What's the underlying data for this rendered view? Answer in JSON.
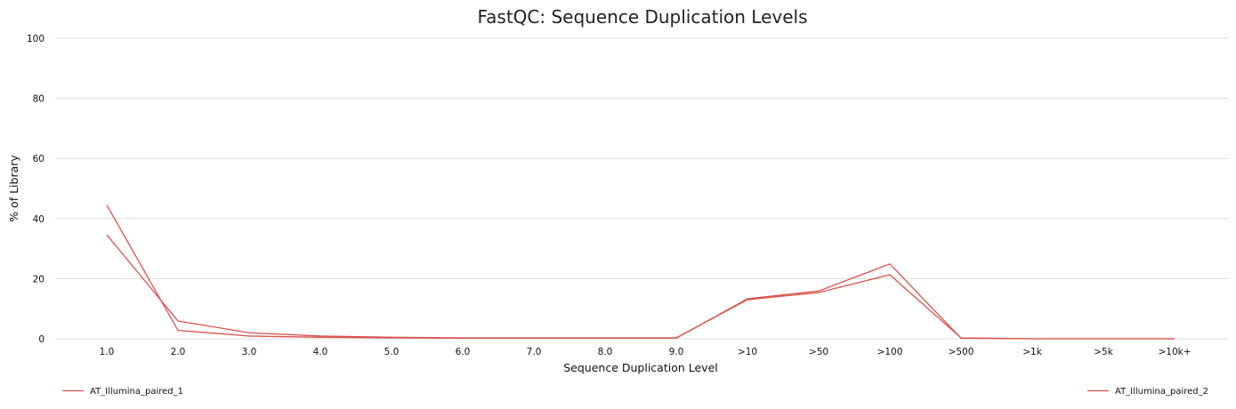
{
  "chart_data": {
    "type": "line",
    "title": "FastQC: Sequence Duplication Levels",
    "xlabel": "Sequence Duplication Level",
    "ylabel": "% of Library",
    "categories": [
      "1.0",
      "2.0",
      "3.0",
      "4.0",
      "5.0",
      "6.0",
      "7.0",
      "8.0",
      "9.0",
      ">10",
      ">50",
      ">100",
      ">500",
      ">1k",
      ">5k",
      ">10k+"
    ],
    "ylim": [
      0,
      100
    ],
    "yticks": [
      0,
      20,
      40,
      60,
      80,
      100
    ],
    "grid": true,
    "legend_position": "bottom",
    "colors": {
      "series": "#d9534f",
      "grid": "#dcdcdc"
    },
    "series": [
      {
        "name": "AT_Illumina_paired_1",
        "values": [
          44.5,
          2.8,
          0.9,
          0.5,
          0.3,
          0.2,
          0.2,
          0.2,
          0.2,
          13.3,
          15.9,
          24.9,
          0.2,
          0.0,
          0.0,
          0.0
        ]
      },
      {
        "name": "AT_Illumina_paired_2",
        "values": [
          34.6,
          5.9,
          2.0,
          0.9,
          0.5,
          0.3,
          0.3,
          0.3,
          0.3,
          13.0,
          15.4,
          21.3,
          0.3,
          0.0,
          0.0,
          0.0
        ]
      }
    ]
  }
}
